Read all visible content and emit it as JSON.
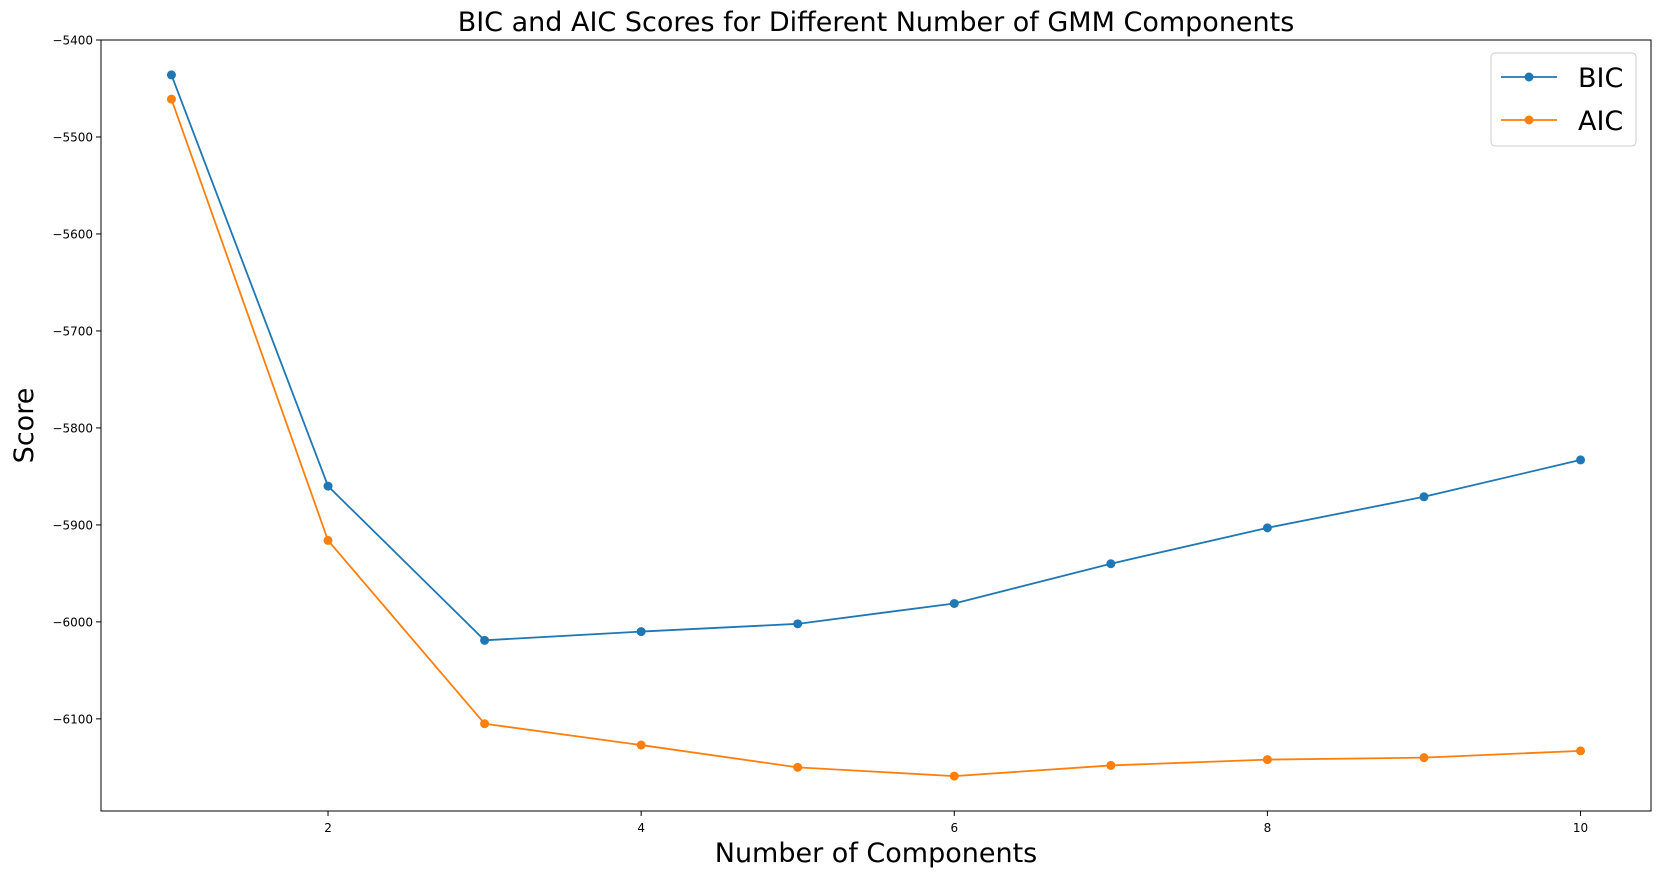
{
  "chart_data": {
    "type": "line",
    "title": "BIC and AIC Scores for Different Number of GMM Components",
    "xlabel": "Number of Components",
    "ylabel": "Score",
    "xlim": [
      0.55,
      10.45
    ],
    "ylim": [
      -6195,
      -5400
    ],
    "xticks": [
      2,
      4,
      6,
      8,
      10
    ],
    "yticks": [
      -5400,
      -5500,
      -5600,
      -5700,
      -5800,
      -5900,
      -6000,
      -6100
    ],
    "ytick_labels": [
      "−5400",
      "−5500",
      "−5600",
      "−5700",
      "−5800",
      "−5900",
      "−6000",
      "−6100"
    ],
    "x": [
      1,
      2,
      3,
      4,
      5,
      6,
      7,
      8,
      9,
      10
    ],
    "series": [
      {
        "name": "BIC",
        "color": "#1f77b4",
        "values": [
          -5436,
          -5860,
          -6019,
          -6010,
          -6002,
          -5981,
          -5940,
          -5903,
          -5871,
          -5833
        ]
      },
      {
        "name": "AIC",
        "color": "#ff7f0e",
        "values": [
          -5461,
          -5916,
          -6105,
          -6127,
          -6150,
          -6159,
          -6148,
          -6142,
          -6140,
          -6133
        ]
      }
    ],
    "grid": false,
    "legend_position": "top-right"
  }
}
